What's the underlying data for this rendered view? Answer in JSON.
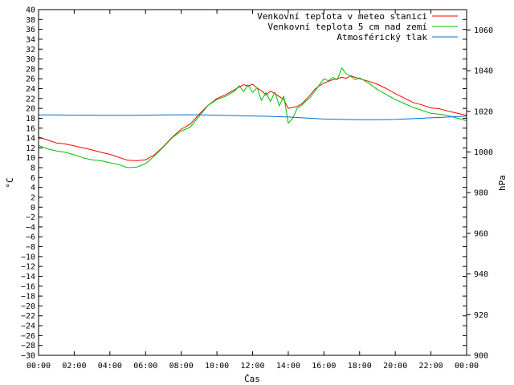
{
  "chart_data": {
    "type": "line",
    "xlabel": "Čas",
    "ylabel_left": "°C",
    "ylabel_right": "hPa",
    "x_ticks": [
      "00:00",
      "02:00",
      "04:00",
      "06:00",
      "08:00",
      "10:00",
      "12:00",
      "14:00",
      "16:00",
      "18:00",
      "20:00",
      "22:00",
      "00:00"
    ],
    "x_range_hours": [
      0,
      24
    ],
    "ylim_left": [
      -30,
      40
    ],
    "ylim_right": [
      900,
      1070
    ],
    "y_ticks_left": [
      40,
      38,
      36,
      34,
      32,
      30,
      28,
      26,
      24,
      22,
      20,
      18,
      16,
      14,
      12,
      10,
      8,
      6,
      4,
      2,
      0,
      -2,
      -4,
      -6,
      -8,
      -10,
      -12,
      -14,
      -16,
      -18,
      -20,
      -22,
      -24,
      -26,
      -28,
      -30
    ],
    "y_ticks_right": [
      1060,
      1040,
      1020,
      1000,
      980,
      960,
      940,
      920,
      900
    ],
    "legend_position": "top-right",
    "series": [
      {
        "name": "Venkovní teplota v meteo stanici",
        "color": "#ff0000",
        "axis": "left",
        "x": [
          0,
          0.5,
          1,
          1.5,
          2,
          2.5,
          3,
          3.5,
          4,
          4.5,
          5,
          5.5,
          6,
          6.5,
          7,
          7.5,
          8,
          8.5,
          9,
          9.5,
          10,
          10.5,
          11,
          11.25,
          11.5,
          11.75,
          12,
          12.25,
          12.5,
          12.75,
          13,
          13.25,
          13.5,
          13.75,
          14,
          14.25,
          14.5,
          14.75,
          15,
          15.25,
          15.5,
          15.75,
          16,
          16.25,
          16.5,
          16.75,
          17,
          17.25,
          17.5,
          17.75,
          18,
          18.5,
          19,
          19.5,
          20,
          20.5,
          21,
          21.5,
          22,
          22.5,
          23,
          23.5,
          24
        ],
        "y": [
          14.2,
          13.6,
          13.0,
          12.8,
          12.4,
          12.0,
          11.6,
          11.1,
          10.7,
          10.1,
          9.5,
          9.4,
          9.6,
          10.6,
          12.3,
          14.2,
          15.8,
          16.8,
          18.8,
          20.6,
          22.0,
          22.8,
          23.8,
          24.3,
          24.8,
          24.5,
          24.9,
          24.1,
          23.6,
          22.7,
          23.5,
          23.0,
          22.4,
          21.8,
          20.0,
          20.2,
          20.4,
          20.9,
          21.8,
          22.8,
          23.9,
          24.6,
          25.1,
          25.5,
          25.8,
          26.0,
          26.3,
          26.1,
          26.6,
          26.3,
          26.0,
          25.5,
          24.9,
          24.0,
          23.0,
          22.1,
          21.2,
          20.7,
          20.1,
          19.9,
          19.4,
          19.0,
          18.6
        ]
      },
      {
        "name": "Venkovní teplota 5 cm nad zemí",
        "color": "#00c000",
        "axis": "left",
        "x": [
          0,
          0.5,
          1,
          1.5,
          2,
          2.5,
          3,
          3.5,
          4,
          4.5,
          5,
          5.5,
          6,
          6.5,
          7,
          7.5,
          8,
          8.5,
          9,
          9.5,
          10,
          10.5,
          11,
          11.25,
          11.5,
          11.75,
          12,
          12.25,
          12.5,
          12.75,
          13,
          13.25,
          13.5,
          13.75,
          14,
          14.25,
          14.5,
          14.75,
          15,
          15.25,
          15.5,
          15.75,
          16,
          16.25,
          16.5,
          16.75,
          17,
          17.25,
          17.5,
          17.75,
          18,
          18.5,
          19,
          19.5,
          20,
          20.5,
          21,
          21.5,
          22,
          22.5,
          23,
          23.5,
          24
        ],
        "y": [
          12.5,
          11.8,
          11.4,
          11.1,
          10.6,
          10.0,
          9.6,
          9.4,
          9.0,
          8.6,
          8.0,
          8.1,
          8.8,
          10.4,
          12.2,
          14.1,
          15.4,
          16.2,
          18.4,
          20.6,
          21.8,
          22.5,
          23.5,
          24.6,
          23.4,
          24.8,
          23.2,
          24.2,
          21.6,
          23.2,
          21.4,
          23.3,
          20.5,
          22.5,
          17.0,
          18.0,
          20.0,
          20.6,
          21.5,
          22.3,
          23.5,
          24.8,
          26.0,
          25.6,
          26.3,
          25.8,
          28.2,
          27.0,
          26.5,
          25.8,
          26.2,
          25.1,
          23.8,
          22.8,
          21.8,
          21.0,
          20.2,
          19.6,
          19.0,
          18.8,
          18.5,
          18.0,
          17.5
        ]
      },
      {
        "name": "Atmosférický tlak",
        "color": "#0070d0",
        "axis": "right",
        "x": [
          0,
          1,
          2,
          3,
          4,
          5,
          6,
          7,
          8,
          9,
          10,
          11,
          12,
          13,
          14,
          15,
          16,
          17,
          18,
          19,
          20,
          21,
          22,
          23,
          24
        ],
        "y": [
          1018.2,
          1018.2,
          1018.1,
          1018.1,
          1018.0,
          1018.0,
          1018.1,
          1018.2,
          1018.3,
          1018.3,
          1018.1,
          1017.9,
          1017.7,
          1017.5,
          1017.2,
          1016.7,
          1016.2,
          1016.0,
          1015.9,
          1015.9,
          1016.0,
          1016.4,
          1016.8,
          1017.2,
          1017.6
        ]
      }
    ]
  }
}
